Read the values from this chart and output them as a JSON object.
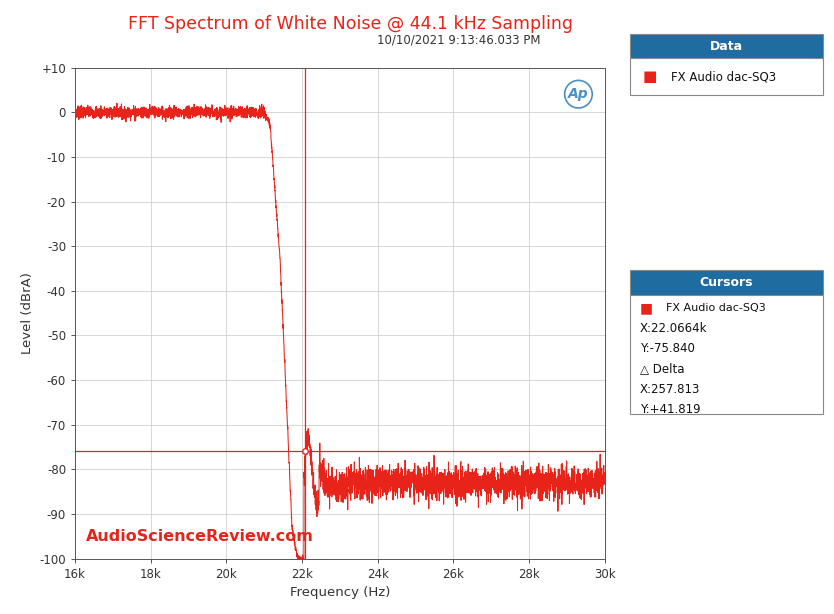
{
  "title": "FFT Spectrum of White Noise @ 44.1 kHz Sampling",
  "subtitle": "10/10/2021 9:13:46.033 PM",
  "xlabel": "Frequency (Hz)",
  "ylabel": "Level (dBrA)",
  "xlim": [
    16000,
    30000
  ],
  "ylim": [
    -100,
    10
  ],
  "yticks": [
    10,
    0,
    -10,
    -20,
    -30,
    -40,
    -50,
    -60,
    -70,
    -80,
    -90,
    -100
  ],
  "xticks": [
    16000,
    18000,
    20000,
    22000,
    24000,
    26000,
    28000,
    30000
  ],
  "xtick_labels": [
    "16k",
    "18k",
    "20k",
    "22k",
    "24k",
    "26k",
    "28k",
    "30k"
  ],
  "ytick_labels": [
    "+10",
    "0",
    "-10",
    "-20",
    "-30",
    "-40",
    "-50",
    "-60",
    "-70",
    "-80",
    "-90",
    "-100"
  ],
  "line_color": "#e8231a",
  "cursor_x": 22066.4,
  "cursor_y": -75.84,
  "cursor_hline_y": -75.84,
  "title_color": "#e8231a",
  "background_color": "#ffffff",
  "grid_color": "#c8c8c8",
  "watermark": "AudioScienceReview.com",
  "data_label": "FX Audio dac-SQ3",
  "cursor_label": "FX Audio dac-SQ3",
  "cursor_x_str": "X:22.0664k",
  "cursor_y_str": "Y:-75.840",
  "delta_x_str": "X:257.813",
  "delta_y_str": "Y:+41.819",
  "legend_header_bg": "#1e6ca0",
  "legend_header_text": "Data",
  "cursor_header_bg": "#1e6ca0",
  "cursor_header_text": "Cursors",
  "ap_logo_color": "#4a90c4",
  "noise_floor_mean": -83.0,
  "noise_floor_std": 1.8,
  "flat_noise_std": 0.7,
  "rolloff_start": 21000,
  "cutoff": 22050
}
